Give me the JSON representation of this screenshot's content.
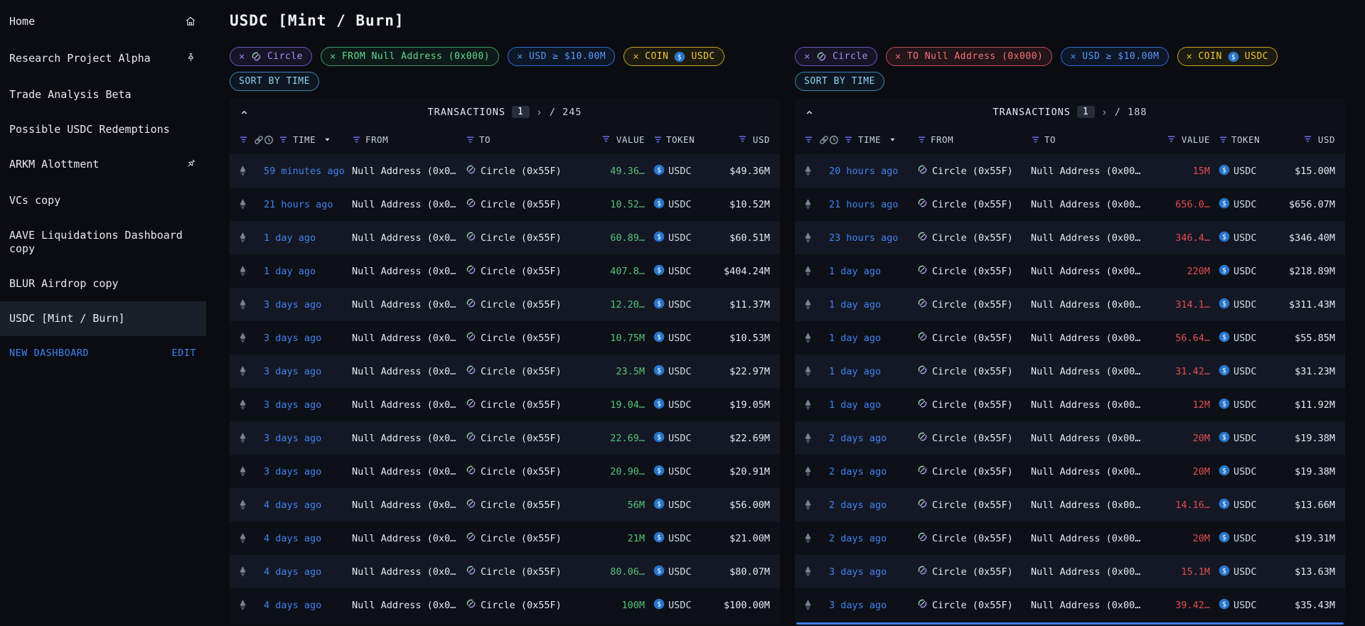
{
  "page_title": "USDC [Mint / Burn]",
  "colors": {
    "accent_blue": "#3f82f2",
    "value_green": "#55c27d",
    "value_red": "#e44d52",
    "filter_icon_purple": "#6a6cf0",
    "usdc_blue": "#2775ca"
  },
  "sidebar": {
    "items": [
      {
        "label": "Home",
        "icon": "house-icon",
        "selected": false
      },
      {
        "label": "Research Project Alpha",
        "icon": "pin-icon",
        "selected": false
      },
      {
        "label": "Trade Analysis Beta",
        "icon": null,
        "selected": false
      },
      {
        "label": "Possible USDC Redemptions",
        "icon": null,
        "selected": false
      },
      {
        "label": "ARKM Alottment",
        "icon": "pin-slanted-icon",
        "selected": false
      },
      {
        "label": "VCs copy",
        "icon": null,
        "selected": false
      },
      {
        "label": "AAVE Liquidations Dashboard copy",
        "icon": null,
        "selected": false
      },
      {
        "label": "BLUR Airdrop copy",
        "icon": null,
        "selected": false
      },
      {
        "label": "USDC [Mint / Burn]",
        "icon": null,
        "selected": true
      }
    ],
    "new_dashboard_label": "NEW DASHBOARD",
    "edit_label": "EDIT"
  },
  "table_columns": {
    "time": "TIME",
    "from": "FROM",
    "to": "TO",
    "value": "VALUE",
    "token": "TOKEN",
    "usd": "USD"
  },
  "panels": [
    {
      "id": "mint",
      "filters": [
        {
          "close": "×",
          "color": "purple",
          "segments": [
            {
              "icon": "circle-logo-icon"
            },
            {
              "text": "Circle"
            }
          ]
        },
        {
          "close": "×",
          "color": "green",
          "segments": [
            {
              "text": "FROM Null Address (0x000)"
            }
          ]
        },
        {
          "close": "×",
          "color": "blue",
          "segments": [
            {
              "text": "USD ≥ $10.00M"
            }
          ]
        },
        {
          "close": "×",
          "color": "yellow",
          "segments": [
            {
              "text": "COIN"
            },
            {
              "icon": "usdc-icon"
            },
            {
              "text": "USDC"
            }
          ]
        }
      ],
      "sort_chip": {
        "label": "SORT BY TIME",
        "color": "cyan"
      },
      "table": {
        "title": "TRANSACTIONS",
        "page": "1",
        "page_next": "›",
        "total": "/ 245",
        "value_color": "green",
        "from_icon": null,
        "to_icon": "circle-logo-icon",
        "h_scrollbar": false,
        "rows": [
          {
            "time": "59 minutes ago",
            "from": "Null Address (0x0…",
            "to": "Circle (0x55F)",
            "value": "49.36…",
            "token": "USDC",
            "usd": "$49.36M"
          },
          {
            "time": "21 hours ago",
            "from": "Null Address (0x0…",
            "to": "Circle (0x55F)",
            "value": "10.52…",
            "token": "USDC",
            "usd": "$10.52M"
          },
          {
            "time": "1 day ago",
            "from": "Null Address (0x0…",
            "to": "Circle (0x55F)",
            "value": "60.89…",
            "token": "USDC",
            "usd": "$60.51M"
          },
          {
            "time": "1 day ago",
            "from": "Null Address (0x0…",
            "to": "Circle (0x55F)",
            "value": "407.8…",
            "token": "USDC",
            "usd": "$404.24M"
          },
          {
            "time": "3 days ago",
            "from": "Null Address (0x0…",
            "to": "Circle (0x55F)",
            "value": "12.20…",
            "token": "USDC",
            "usd": "$11.37M"
          },
          {
            "time": "3 days ago",
            "from": "Null Address (0x0…",
            "to": "Circle (0x55F)",
            "value": "10.75M",
            "token": "USDC",
            "usd": "$10.53M"
          },
          {
            "time": "3 days ago",
            "from": "Null Address (0x0…",
            "to": "Circle (0x55F)",
            "value": "23.5M",
            "token": "USDC",
            "usd": "$22.97M"
          },
          {
            "time": "3 days ago",
            "from": "Null Address (0x0…",
            "to": "Circle (0x55F)",
            "value": "19.04…",
            "token": "USDC",
            "usd": "$19.05M"
          },
          {
            "time": "3 days ago",
            "from": "Null Address (0x0…",
            "to": "Circle (0x55F)",
            "value": "22.69…",
            "token": "USDC",
            "usd": "$22.69M"
          },
          {
            "time": "3 days ago",
            "from": "Null Address (0x0…",
            "to": "Circle (0x55F)",
            "value": "20.90…",
            "token": "USDC",
            "usd": "$20.91M"
          },
          {
            "time": "4 days ago",
            "from": "Null Address (0x0…",
            "to": "Circle (0x55F)",
            "value": "56M",
            "token": "USDC",
            "usd": "$56.00M"
          },
          {
            "time": "4 days ago",
            "from": "Null Address (0x0…",
            "to": "Circle (0x55F)",
            "value": "21M",
            "token": "USDC",
            "usd": "$21.00M"
          },
          {
            "time": "4 days ago",
            "from": "Null Address (0x0…",
            "to": "Circle (0x55F)",
            "value": "80.06…",
            "token": "USDC",
            "usd": "$80.07M"
          },
          {
            "time": "4 days ago",
            "from": "Null Address (0x0…",
            "to": "Circle (0x55F)",
            "value": "100M",
            "token": "USDC",
            "usd": "$100.00M"
          }
        ]
      }
    },
    {
      "id": "burn",
      "filters": [
        {
          "close": "×",
          "color": "purple",
          "segments": [
            {
              "icon": "circle-logo-icon"
            },
            {
              "text": "Circle"
            }
          ]
        },
        {
          "close": "×",
          "color": "red",
          "segments": [
            {
              "text": "TO Null Address (0x000)"
            }
          ]
        },
        {
          "close": "×",
          "color": "blue",
          "segments": [
            {
              "text": "USD ≥ $10.00M"
            }
          ]
        },
        {
          "close": "×",
          "color": "yellow",
          "segments": [
            {
              "text": "COIN"
            },
            {
              "icon": "usdc-icon"
            },
            {
              "text": "USDC"
            }
          ]
        }
      ],
      "sort_chip": {
        "label": "SORT BY TIME",
        "color": "cyan"
      },
      "table": {
        "title": "TRANSACTIONS",
        "page": "1",
        "page_next": "›",
        "total": "/ 188",
        "value_color": "red",
        "from_icon": "circle-logo-icon",
        "to_icon": null,
        "h_scrollbar": true,
        "rows": [
          {
            "time": "20 hours ago",
            "from": "Circle (0x55F)",
            "to": "Null Address (0x00…",
            "value": "15M",
            "token": "USDC",
            "usd": "$15.00M"
          },
          {
            "time": "21 hours ago",
            "from": "Circle (0x55F)",
            "to": "Null Address (0x00…",
            "value": "656.0…",
            "token": "USDC",
            "usd": "$656.07M"
          },
          {
            "time": "23 hours ago",
            "from": "Circle (0x55F)",
            "to": "Null Address (0x00…",
            "value": "346.4…",
            "token": "USDC",
            "usd": "$346.40M"
          },
          {
            "time": "1 day ago",
            "from": "Circle (0x55F)",
            "to": "Null Address (0x00…",
            "value": "220M",
            "token": "USDC",
            "usd": "$218.89M"
          },
          {
            "time": "1 day ago",
            "from": "Circle (0x55F)",
            "to": "Null Address (0x00…",
            "value": "314.1…",
            "token": "USDC",
            "usd": "$311.43M"
          },
          {
            "time": "1 day ago",
            "from": "Circle (0x55F)",
            "to": "Null Address (0x00…",
            "value": "56.64…",
            "token": "USDC",
            "usd": "$55.85M"
          },
          {
            "time": "1 day ago",
            "from": "Circle (0x55F)",
            "to": "Null Address (0x00…",
            "value": "31.42…",
            "token": "USDC",
            "usd": "$31.23M"
          },
          {
            "time": "1 day ago",
            "from": "Circle (0x55F)",
            "to": "Null Address (0x00…",
            "value": "12M",
            "token": "USDC",
            "usd": "$11.92M"
          },
          {
            "time": "2 days ago",
            "from": "Circle (0x55F)",
            "to": "Null Address (0x00…",
            "value": "20M",
            "token": "USDC",
            "usd": "$19.38M"
          },
          {
            "time": "2 days ago",
            "from": "Circle (0x55F)",
            "to": "Null Address (0x00…",
            "value": "20M",
            "token": "USDC",
            "usd": "$19.38M"
          },
          {
            "time": "2 days ago",
            "from": "Circle (0x55F)",
            "to": "Null Address (0x00…",
            "value": "14.16…",
            "token": "USDC",
            "usd": "$13.66M"
          },
          {
            "time": "2 days ago",
            "from": "Circle (0x55F)",
            "to": "Null Address (0x00…",
            "value": "20M",
            "token": "USDC",
            "usd": "$19.31M"
          },
          {
            "time": "3 days ago",
            "from": "Circle (0x55F)",
            "to": "Null Address (0x00…",
            "value": "15.1M",
            "token": "USDC",
            "usd": "$13.63M"
          },
          {
            "time": "3 days ago",
            "from": "Circle (0x55F)",
            "to": "Null Address (0x00…",
            "value": "39.42…",
            "token": "USDC",
            "usd": "$35.43M"
          }
        ]
      }
    }
  ]
}
